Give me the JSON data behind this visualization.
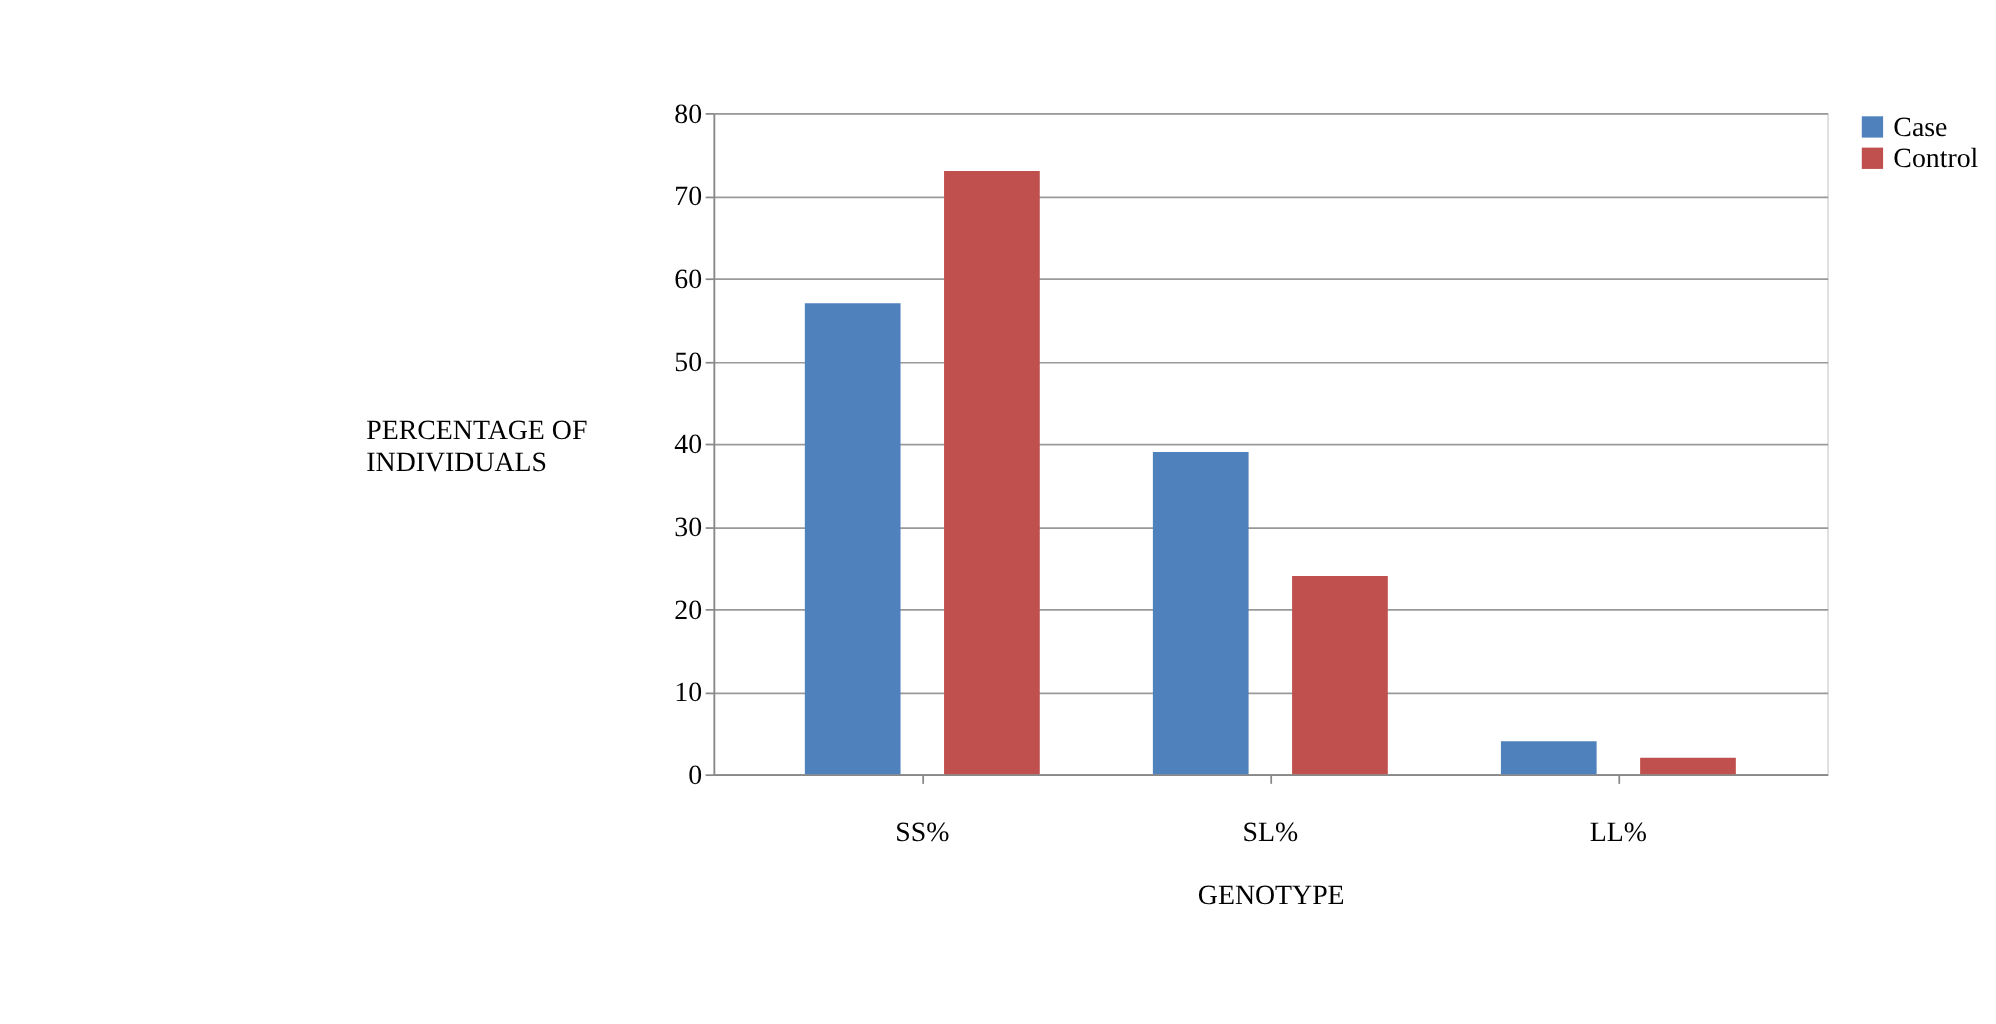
{
  "chart_data": {
    "type": "bar",
    "xlabel": "GENOTYPE",
    "ylabel": "PERCENTAGE OF INDIVIDUALS",
    "categories": [
      "SS%",
      "SL%",
      "LL%"
    ],
    "series": [
      {
        "name": "Case",
        "color": "#4f81bd",
        "values": [
          57,
          39,
          4
        ]
      },
      {
        "name": "Control",
        "color": "#c0504d",
        "values": [
          73,
          24,
          2
        ]
      }
    ],
    "ylim": [
      0,
      80
    ],
    "yticks": [
      0,
      10,
      20,
      30,
      40,
      50,
      60,
      70,
      80
    ],
    "grid": "y",
    "legend": "right"
  }
}
